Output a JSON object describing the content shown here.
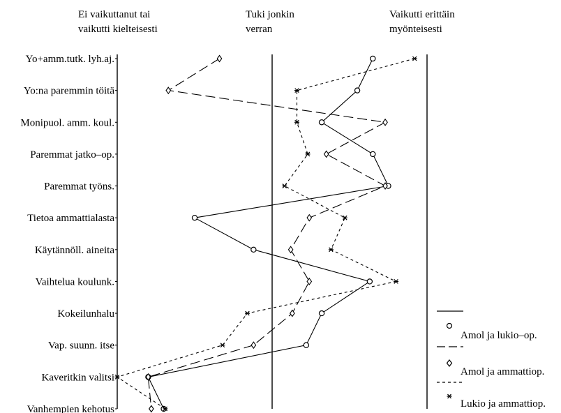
{
  "chart_data": {
    "type": "line",
    "orientation": "horizontal-categories",
    "categories": [
      "Yo+amm.tutk. lyh.aj.",
      "Yo:na paremmin töitä",
      "Monipuol. amm. koul.",
      "Paremmat jatko–op.",
      "Paremmat työns.",
      "Tietoa ammattialasta",
      "Käytännöll. aineita",
      "Vaihtelua koulunk.",
      "Kokeilunhalu",
      "Vap. suunn. itse",
      "Kaveritkin valitsi",
      "Vanhempien kehotus"
    ],
    "scale_labels": [
      [
        "Ei vaikuttanut tai",
        "vaikutti kielteisesti"
      ],
      [
        "Tuki jonkin",
        "verran"
      ],
      [
        "Vaikutti erittäin",
        "myönteisesti"
      ]
    ],
    "xlim": [
      1,
      3
    ],
    "series": [
      {
        "name": "Amol ja lukio–op.",
        "marker": "circle",
        "dash": "solid",
        "values": [
          2.65,
          2.55,
          2.32,
          2.65,
          2.75,
          1.5,
          1.88,
          2.63,
          2.32,
          2.22,
          1.2,
          1.3
        ]
      },
      {
        "name": "Amol ja ammattiop.",
        "marker": "diamond",
        "dash": "long-dash",
        "values": [
          1.66,
          1.33,
          2.73,
          2.35,
          2.73,
          2.24,
          2.12,
          2.24,
          2.13,
          1.88,
          1.2,
          1.22
        ]
      },
      {
        "name": "Lukio ja ammattiop.",
        "marker": "star",
        "dash": "short-dash",
        "values": [
          2.92,
          2.16,
          2.16,
          2.23,
          2.08,
          2.47,
          2.38,
          2.8,
          1.84,
          1.68,
          1.0,
          1.31
        ]
      }
    ],
    "legend_position": "bottom-right"
  }
}
